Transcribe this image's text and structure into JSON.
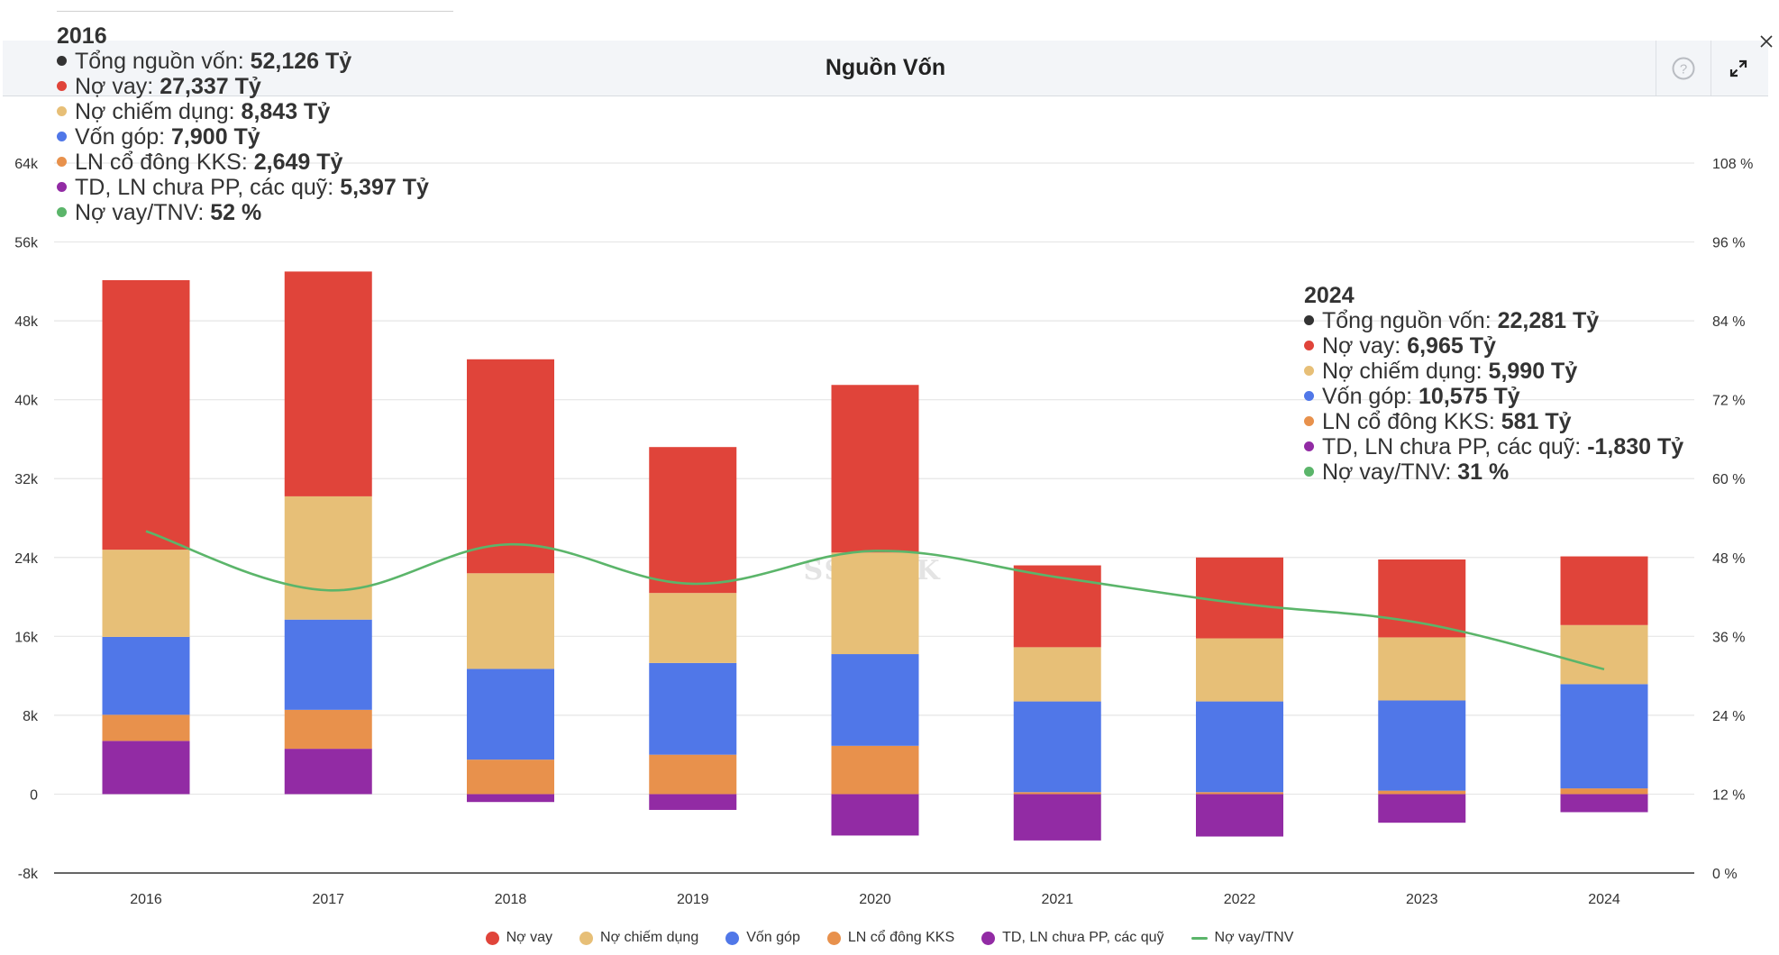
{
  "header": {
    "title": "Nguồn Vốn",
    "help_icon": "question-circle-icon",
    "expand_icon": "expand-arrows-icon",
    "close_icon": "close-x-icon"
  },
  "colors": {
    "no_vay": "#e0443a",
    "no_chiem_dung": "#e7bf77",
    "von_gop": "#5077e8",
    "ln_co_dong": "#e8914c",
    "td_ln": "#922ba4",
    "ratio": "#5bb56a",
    "total": "#333333"
  },
  "tooltips": [
    {
      "year": "2016",
      "rows": [
        {
          "label": "Tổng nguồn vốn: ",
          "value": "52,126 Tỷ",
          "color": "#333333"
        },
        {
          "label": "Nợ vay: ",
          "value": "27,337 Tỷ",
          "color": "#e0443a"
        },
        {
          "label": "Nợ chiếm dụng: ",
          "value": "8,843 Tỷ",
          "color": "#e7bf77"
        },
        {
          "label": "Vốn góp: ",
          "value": "7,900 Tỷ",
          "color": "#5077e8"
        },
        {
          "label": "LN cổ đông KKS: ",
          "value": "2,649 Tỷ",
          "color": "#e8914c"
        },
        {
          "label": "TD, LN chưa PP, các quỹ: ",
          "value": "5,397 Tỷ",
          "color": "#922ba4"
        },
        {
          "label": "Nợ vay/TNV: ",
          "value": "52 %",
          "color": "#5bb56a"
        }
      ]
    },
    {
      "year": "2024",
      "rows": [
        {
          "label": "Tổng nguồn vốn: ",
          "value": "22,281 Tỷ",
          "color": "#333333"
        },
        {
          "label": "Nợ vay: ",
          "value": "6,965 Tỷ",
          "color": "#e0443a"
        },
        {
          "label": "Nợ chiếm dụng: ",
          "value": "5,990 Tỷ",
          "color": "#e7bf77"
        },
        {
          "label": "Vốn góp: ",
          "value": "10,575 Tỷ",
          "color": "#5077e8"
        },
        {
          "label": "LN cổ đông KKS: ",
          "value": "581 Tỷ",
          "color": "#e8914c"
        },
        {
          "label": "TD, LN chưa PP, các quỹ: ",
          "value": "-1,830 Tỷ",
          "color": "#922ba4"
        },
        {
          "label": "Nợ vay/TNV: ",
          "value": "31 %",
          "color": "#5bb56a"
        }
      ]
    }
  ],
  "watermark": "SSTOCK",
  "chart_data": {
    "type": "bar",
    "stacked": true,
    "title": "Nguồn Vốn",
    "categories": [
      "2016",
      "2017",
      "2018",
      "2019",
      "2020",
      "2021",
      "2022",
      "2023",
      "2024"
    ],
    "series": [
      {
        "name": "TD, LN chưa PP, các quỹ",
        "key": "td_ln",
        "values": [
          5397,
          4600,
          -800,
          -1600,
          -4200,
          -4700,
          -4300,
          -2900,
          -1830
        ]
      },
      {
        "name": "LN cổ đông KKS",
        "key": "ln_co_dong",
        "values": [
          2649,
          3950,
          3500,
          4000,
          4900,
          200,
          200,
          350,
          581
        ]
      },
      {
        "name": "Vốn góp",
        "key": "von_gop",
        "values": [
          7900,
          9150,
          9200,
          9300,
          9300,
          9200,
          9200,
          9150,
          10575
        ]
      },
      {
        "name": "Nợ chiếm dụng",
        "key": "no_chiem_dung",
        "values": [
          8843,
          12500,
          9700,
          7100,
          10300,
          5500,
          6400,
          6400,
          5990
        ]
      },
      {
        "name": "Nợ vay",
        "key": "no_vay",
        "values": [
          27337,
          22800,
          21700,
          14800,
          17000,
          8300,
          8200,
          7900,
          6965
        ]
      }
    ],
    "line_series": {
      "name": "Nợ vay/TNV",
      "key": "ratio",
      "axis": "right",
      "values": [
        52,
        43,
        50,
        44,
        49,
        45,
        41,
        38,
        31
      ]
    },
    "legend": [
      "Nợ vay",
      "Nợ chiếm dụng",
      "Vốn góp",
      "LN cổ đông KKS",
      "TD, LN chưa PP, các quỹ",
      "Nợ vay/TNV"
    ],
    "legend_position": "bottom",
    "y_left": {
      "ticks": [
        "-8k",
        "0",
        "8k",
        "16k",
        "24k",
        "32k",
        "40k",
        "48k",
        "56k",
        "64k"
      ],
      "ylim": [
        -8000,
        64000
      ]
    },
    "y_right": {
      "ticks": [
        "0 %",
        "12 %",
        "24 %",
        "36 %",
        "48 %",
        "60 %",
        "72 %",
        "84 %",
        "96 %",
        "108 %"
      ],
      "ylim": [
        0,
        108
      ]
    },
    "grid": true
  }
}
